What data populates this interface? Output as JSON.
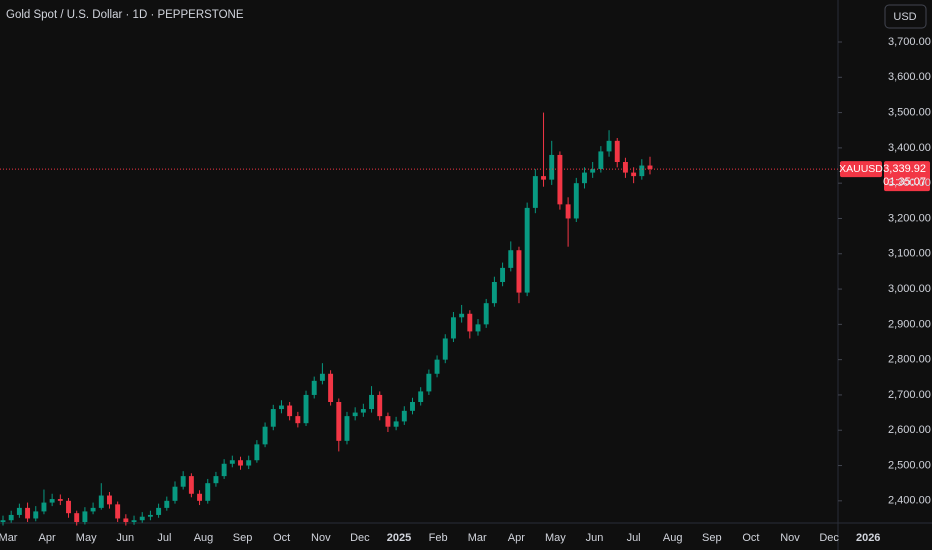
{
  "chart_data": {
    "type": "candlestick",
    "title": "Gold Spot / U.S. Dollar · 1D · PEPPERSTONE",
    "currency": "USD",
    "symbol": "XAUUSD",
    "last_price": {
      "value": 3339.92,
      "label": "3,339.92"
    },
    "countdown": "01:35:07",
    "up_color": "#089981",
    "down_color": "#f23645",
    "ylim": [
      2340,
      3819
    ],
    "yticks": [
      {
        "value": 2400,
        "label": "2,400.00"
      },
      {
        "value": 2500,
        "label": "2,500.00"
      },
      {
        "value": 2600,
        "label": "2,600.00"
      },
      {
        "value": 2700,
        "label": "2,700.00"
      },
      {
        "value": 2800,
        "label": "2,800.00"
      },
      {
        "value": 2900,
        "label": "2,900.00"
      },
      {
        "value": 3000,
        "label": "3,000.00"
      },
      {
        "value": 3100,
        "label": "3,100.00"
      },
      {
        "value": 3200,
        "label": "3,200.00"
      },
      {
        "value": 3300,
        "label": "3,300.00"
      },
      {
        "value": 3400,
        "label": "3,400.00"
      },
      {
        "value": 3500,
        "label": "3,500.00"
      },
      {
        "value": 3600,
        "label": "3,600.00"
      },
      {
        "value": 3700,
        "label": "3,700.00"
      }
    ],
    "xticks": [
      "Mar",
      "Apr",
      "May",
      "Jun",
      "Jul",
      "Aug",
      "Sep",
      "Oct",
      "Nov",
      "Dec",
      "2025",
      "Feb",
      "Mar",
      "Apr",
      "May",
      "Jun",
      "Jul",
      "Aug",
      "Sep",
      "Oct",
      "Nov",
      "Dec",
      "2026"
    ],
    "open": [
      2340,
      2345,
      2360,
      2380,
      2350,
      2370,
      2395,
      2405,
      2400,
      2365,
      2340,
      2370,
      2380,
      2415,
      2390,
      2350,
      2340,
      2345,
      2355,
      2360,
      2380,
      2400,
      2440,
      2470,
      2420,
      2400,
      2450,
      2470,
      2505,
      2515,
      2500,
      2515,
      2560,
      2610,
      2660,
      2670,
      2640,
      2620,
      2700,
      2740,
      2760,
      2680,
      2570,
      2640,
      2650,
      2660,
      2700,
      2640,
      2610,
      2625,
      2655,
      2680,
      2710,
      2760,
      2800,
      2860,
      2920,
      2930,
      2880,
      2900,
      2960,
      3020,
      3060,
      3110,
      2990,
      3230,
      3320,
      3310,
      3380,
      3240,
      3200,
      3300,
      3330,
      3340,
      3390,
      3420,
      3360,
      3330,
      3320,
      3350
    ],
    "high": [
      2358,
      2372,
      2392,
      2395,
      2385,
      2432,
      2420,
      2418,
      2408,
      2372,
      2382,
      2395,
      2450,
      2425,
      2398,
      2362,
      2358,
      2368,
      2372,
      2392,
      2412,
      2455,
      2484,
      2478,
      2430,
      2462,
      2482,
      2518,
      2528,
      2525,
      2528,
      2572,
      2622,
      2672,
      2685,
      2680,
      2652,
      2712,
      2752,
      2790,
      2770,
      2690,
      2652,
      2665,
      2675,
      2725,
      2710,
      2650,
      2638,
      2668,
      2692,
      2722,
      2772,
      2812,
      2872,
      2935,
      2955,
      2940,
      2915,
      2972,
      3035,
      3075,
      3135,
      3120,
      3245,
      3340,
      3500,
      3420,
      3390,
      3260,
      3315,
      3345,
      3360,
      3405,
      3450,
      3428,
      3372,
      3345,
      3368,
      3375
    ],
    "low": [
      2330,
      2338,
      2352,
      2340,
      2342,
      2362,
      2385,
      2388,
      2352,
      2330,
      2333,
      2362,
      2375,
      2378,
      2340,
      2330,
      2332,
      2338,
      2345,
      2352,
      2372,
      2392,
      2432,
      2410,
      2388,
      2392,
      2440,
      2462,
      2495,
      2488,
      2490,
      2508,
      2552,
      2600,
      2648,
      2628,
      2608,
      2612,
      2690,
      2730,
      2670,
      2540,
      2560,
      2628,
      2638,
      2650,
      2628,
      2595,
      2600,
      2615,
      2645,
      2670,
      2700,
      2750,
      2790,
      2850,
      2905,
      2860,
      2868,
      2890,
      2950,
      3008,
      3050,
      2960,
      2980,
      3215,
      3290,
      3295,
      3225,
      3120,
      3190,
      3285,
      3315,
      3330,
      3375,
      3345,
      3315,
      3300,
      3310,
      3325
    ],
    "close": [
      2345,
      2360,
      2380,
      2350,
      2370,
      2395,
      2405,
      2400,
      2365,
      2340,
      2370,
      2380,
      2415,
      2390,
      2350,
      2340,
      2345,
      2355,
      2360,
      2380,
      2400,
      2440,
      2470,
      2420,
      2400,
      2450,
      2470,
      2505,
      2515,
      2500,
      2515,
      2560,
      2610,
      2660,
      2670,
      2640,
      2620,
      2700,
      2740,
      2760,
      2680,
      2570,
      2640,
      2650,
      2660,
      2700,
      2640,
      2610,
      2625,
      2655,
      2680,
      2710,
      2760,
      2800,
      2860,
      2920,
      2930,
      2880,
      2900,
      2960,
      3020,
      3060,
      3110,
      2990,
      3230,
      3320,
      3310,
      3380,
      3240,
      3200,
      3300,
      3330,
      3340,
      3390,
      3420,
      3360,
      3330,
      3320,
      3350,
      3339.92
    ]
  }
}
